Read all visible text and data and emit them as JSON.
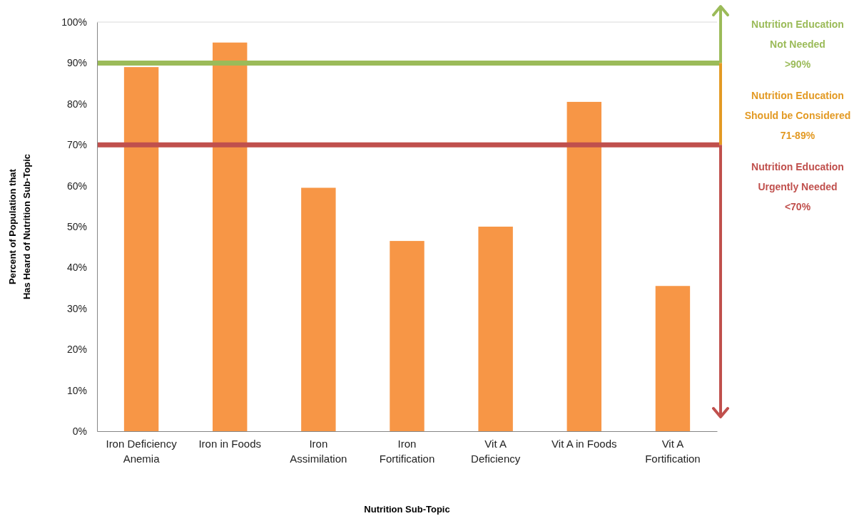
{
  "chart_data": {
    "type": "bar",
    "xlabel": "Nutrition Sub-Topic",
    "ylabel": "Percent of Population that\nHas Heard of Nutrition Sub-Topic",
    "categories": [
      "Iron Deficiency Anemia",
      "Iron in Foods",
      "Iron Assimilation",
      "Iron Fortification",
      "Vit A Deficiency",
      "Vit A in Foods",
      "Vit A Fortification"
    ],
    "values": [
      89,
      95,
      59.5,
      46.5,
      50,
      80.5,
      35.5
    ],
    "color": "#f79646",
    "ylim": [
      0,
      100
    ],
    "yticks": [
      {
        "value": 0,
        "label": "0%"
      },
      {
        "value": 10,
        "label": "10%"
      },
      {
        "value": 20,
        "label": "20%"
      },
      {
        "value": 30,
        "label": "30%"
      },
      {
        "value": 40,
        "label": "40%"
      },
      {
        "value": 50,
        "label": "50%"
      },
      {
        "value": 60,
        "label": "60%"
      },
      {
        "value": 70,
        "label": "70%"
      },
      {
        "value": 80,
        "label": "80%"
      },
      {
        "value": 90,
        "label": "90%"
      },
      {
        "value": 100,
        "label": "100%"
      }
    ],
    "ref_lines": [
      {
        "axis": "y",
        "value": 90,
        "color": "#9bbb59"
      },
      {
        "axis": "y",
        "value": 70,
        "color": "#c0504d"
      }
    ],
    "annotations": [
      "Nutrition Education\nNot Needed\n>90%",
      "Nutrition Education\nShould be Considered\n71-89%",
      "Nutrition Education\nUrgently Needed\n<70%"
    ]
  }
}
